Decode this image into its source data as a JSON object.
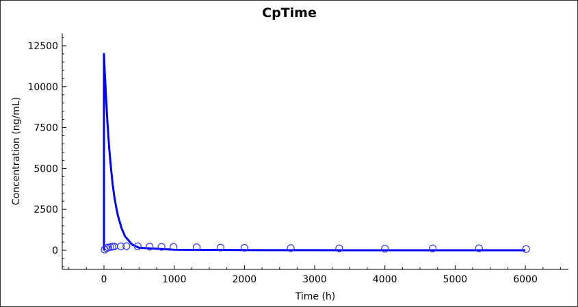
{
  "chart_data": {
    "type": "line",
    "title": "CpTime",
    "xlabel": "Time (h)",
    "ylabel": "Concentration (ng/mL)",
    "xlim": [
      -594,
      6613
    ],
    "ylim": [
      -1170,
      13250
    ],
    "xticks": [
      0,
      1000,
      2000,
      3000,
      4000,
      5000,
      6000
    ],
    "yticks": [
      0,
      2500,
      5000,
      7500,
      10000,
      12500
    ],
    "grid": false,
    "series_color": "#0000ff",
    "series": [
      {
        "type": "line",
        "x": [
          0,
          0,
          10,
          25,
          50,
          75,
          100,
          125,
          150,
          175,
          200,
          250,
          300,
          400,
          500,
          1000,
          2000,
          3000,
          4000,
          5000,
          6000
        ],
        "y": [
          0,
          12000,
          11000,
          9700,
          7800,
          6200,
          5000,
          4000,
          3200,
          2600,
          2100,
          1350,
          850,
          350,
          150,
          30,
          10,
          5,
          2,
          1,
          0
        ]
      },
      {
        "type": "scatter",
        "marker": "open-circle",
        "x": [
          10,
          36,
          60,
          90,
          120,
          144,
          240,
          320,
          480,
          650,
          820,
          990,
          1320,
          1660,
          2000,
          2660,
          3350,
          4000,
          4680,
          5340,
          6010
        ],
        "y": [
          40,
          130,
          170,
          200,
          220,
          230,
          240,
          250,
          240,
          220,
          210,
          200,
          180,
          160,
          150,
          130,
          110,
          95,
          110,
          120,
          70
        ]
      }
    ]
  }
}
